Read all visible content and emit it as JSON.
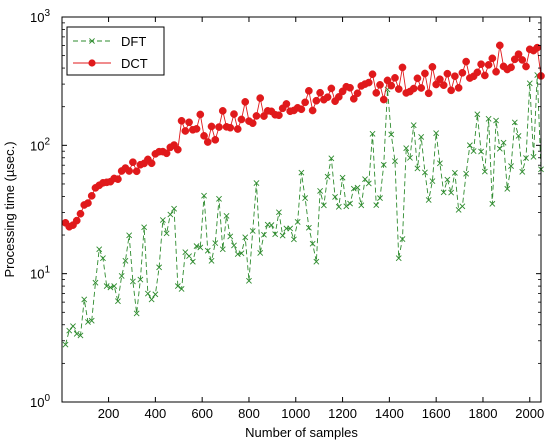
{
  "chart_data": {
    "type": "line",
    "title": "",
    "xlabel": "Number of samples",
    "ylabel": "Processing time (µsec.)",
    "xlim": [
      1,
      2048
    ],
    "ylim": [
      1,
      1000
    ],
    "yscale": "log",
    "grid": false,
    "legend_position": "top-left",
    "x_ticks": [
      200,
      400,
      600,
      800,
      1000,
      1200,
      1400,
      1600,
      1800,
      2000
    ],
    "x_tick_labels": [
      "200",
      "400",
      "600",
      "800",
      "1000",
      "1200",
      "1400",
      "1600",
      "1800",
      "2000"
    ],
    "y_ticks": [
      1,
      10,
      100,
      1000
    ],
    "y_tick_labels": [
      {
        "base": "10",
        "exp": "0"
      },
      {
        "base": "10",
        "exp": "1"
      },
      {
        "base": "10",
        "exp": "2"
      },
      {
        "base": "10",
        "exp": "3"
      }
    ],
    "x": [
      16,
      32,
      48,
      64,
      80,
      96,
      112,
      128,
      144,
      160,
      176,
      192,
      208,
      224,
      240,
      256,
      272,
      288,
      304,
      320,
      336,
      352,
      368,
      384,
      400,
      416,
      432,
      448,
      464,
      480,
      496,
      512,
      528,
      544,
      560,
      576,
      592,
      608,
      624,
      640,
      656,
      672,
      688,
      704,
      720,
      736,
      752,
      768,
      784,
      800,
      816,
      832,
      848,
      864,
      880,
      896,
      912,
      928,
      944,
      960,
      976,
      992,
      1008,
      1024,
      1040,
      1056,
      1072,
      1088,
      1104,
      1120,
      1136,
      1152,
      1168,
      1184,
      1200,
      1216,
      1232,
      1248,
      1264,
      1280,
      1296,
      1312,
      1328,
      1344,
      1360,
      1376,
      1392,
      1408,
      1424,
      1440,
      1456,
      1472,
      1488,
      1504,
      1520,
      1536,
      1552,
      1568,
      1584,
      1600,
      1616,
      1632,
      1648,
      1664,
      1680,
      1696,
      1712,
      1728,
      1744,
      1760,
      1776,
      1792,
      1808,
      1824,
      1840,
      1856,
      1872,
      1888,
      1904,
      1920,
      1936,
      1952,
      1968,
      1984,
      2000,
      2016,
      2032,
      2048
    ],
    "series": [
      {
        "name": "DFT",
        "color": "#2e8b2e",
        "marker": "x",
        "line_style": "dashed",
        "values": [
          2.8,
          3.6,
          3.9,
          3.4,
          3.3,
          6.3,
          4.2,
          4.3,
          8.5,
          15.5,
          13.2,
          8.0,
          7.8,
          8.0,
          6.1,
          9.6,
          12.6,
          19.9,
          8.7,
          4.9,
          9.0,
          23.0,
          7.0,
          6.3,
          6.9,
          11.2,
          26.2,
          20.6,
          28.9,
          32.1,
          8.0,
          7.6,
          14.7,
          13.7,
          12.4,
          16.4,
          16.0,
          40.5,
          15.1,
          12.6,
          17.3,
          38.3,
          15.5,
          28.2,
          19.5,
          16.6,
          14.2,
          14.4,
          19.2,
          8.8,
          21.5,
          50.8,
          14.5,
          20.1,
          24.1,
          23.9,
          20.3,
          30.1,
          19.8,
          22.5,
          22.5,
          18.5,
          25.3,
          61.3,
          38.8,
          22.8,
          17.1,
          12.4,
          44.1,
          34.1,
          57.0,
          79.2,
          39.6,
          33.2,
          56.0,
          33.5,
          35.2,
          46.0,
          46.8,
          34.1,
          54.5,
          50.5,
          123.0,
          34.2,
          38.8,
          70.5,
          272.6,
          121.5,
          75.3,
          13.2,
          18.6,
          95.0,
          79.9,
          143.5,
          66.1,
          116.3,
          61.5,
          37.5,
          52.6,
          124.4,
          72.4,
          43.0,
          54.0,
          42.8,
          61.1,
          31.4,
          33.5,
          60.1,
          100.2,
          90.2,
          174.6,
          89.4,
          62.4,
          161.0,
          35.0,
          156.1,
          94.1,
          104.9,
          45.8,
          68.9,
          151.0,
          118.5,
          62.2,
          79.6,
          304.3,
          81.3,
          353.1,
          65.0
        ]
      },
      {
        "name": "DCT",
        "color": "#e0191b",
        "marker": "circle",
        "line_style": "solid",
        "values": [
          24.9,
          23.2,
          23.9,
          25.9,
          29.3,
          34.3,
          35.5,
          40.4,
          46.6,
          48.8,
          51.0,
          51.5,
          52.1,
          55.2,
          54.5,
          63.1,
          66.5,
          63.1,
          73.9,
          62.8,
          70.6,
          72.3,
          77.7,
          72.5,
          85.8,
          89.2,
          89.3,
          86.7,
          96.5,
          100.5,
          92.6,
          155.3,
          129.4,
          151.2,
          132.1,
          134.3,
          174.0,
          118.6,
          106.1,
          140.3,
          110.4,
          138.8,
          185.6,
          139.3,
          137.2,
          175.2,
          134.0,
          159.2,
          218.1,
          154.4,
          148.8,
          169.5,
          233.4,
          169.0,
          185.6,
          183.9,
          173.0,
          171.6,
          194.3,
          210.2,
          184.4,
          187.1,
          196.1,
          191.1,
          216.3,
          265.9,
          186.9,
          222.6,
          256.8,
          226.9,
          237.3,
          277.6,
          220.8,
          238.5,
          263.2,
          286.1,
          280.8,
          230.4,
          254.6,
          290.2,
          300.1,
          308.3,
          358.1,
          256.2,
          296.0,
          227.4,
          320.6,
          291.8,
          335.5,
          274.5,
          404.6,
          255.9,
          262.6,
          276.9,
          333.0,
          279.9,
          363.2,
          254.4,
          408.5,
          298.0,
          327.1,
          294.3,
          361.6,
          268.3,
          345.5,
          280.5,
          367.3,
          449.3,
          334.4,
          345.1,
          370.3,
          428.7,
          350.4,
          423.5,
          476.3,
          374.4,
          600.9,
          412.3,
          390.1,
          405.2,
          468.1,
          513.1,
          462.8,
          411.5,
          559.9,
          547.4,
          576.9,
          347.4
        ]
      }
    ]
  }
}
